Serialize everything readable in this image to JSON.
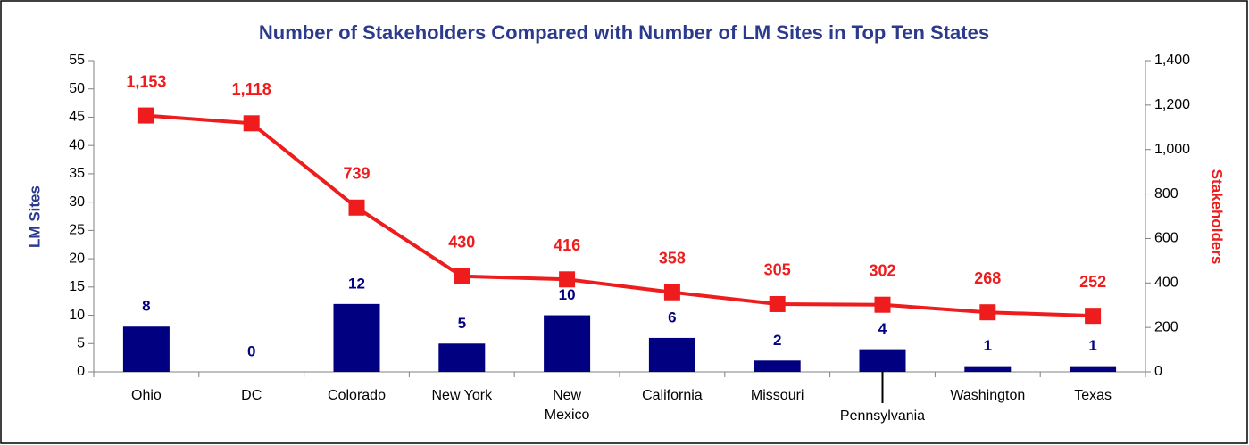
{
  "chart_data": {
    "type": "bar_line",
    "title": "Number of Stakeholders Compared with Number of LM Sites in Top Ten States",
    "categories": [
      "Ohio",
      "DC",
      "Colorado",
      "New York",
      "New Mexico",
      "California",
      "Missouri",
      "Pennsylvania",
      "Washington",
      "Texas"
    ],
    "series": [
      {
        "name": "LM Sites",
        "type": "bar",
        "color": "#000080",
        "values": [
          8,
          0,
          12,
          5,
          10,
          6,
          2,
          4,
          1,
          1
        ]
      },
      {
        "name": "Stakeholders",
        "type": "line",
        "axis": "y2",
        "color": "#ee1c1c",
        "values": [
          1153,
          1118,
          739,
          430,
          416,
          358,
          305,
          302,
          268,
          252
        ],
        "value_labels": [
          "1,153",
          "1,118",
          "739",
          "430",
          "416",
          "358",
          "305",
          "302",
          "268",
          "252"
        ]
      }
    ],
    "ylabel": "LM Sites",
    "y2label": "Stakeholders",
    "ylim": [
      0,
      55
    ],
    "yticks": [
      0,
      5,
      10,
      15,
      20,
      25,
      30,
      35,
      40,
      45,
      50,
      55
    ],
    "y2lim": [
      0,
      1400
    ],
    "y2ticks": [
      0,
      200,
      400,
      600,
      800,
      {
        "value": 1000,
        "label": "1,000"
      },
      {
        "value": 1200,
        "label": "1,200"
      },
      {
        "value": 1400,
        "label": "1,400"
      }
    ],
    "grid": false
  }
}
